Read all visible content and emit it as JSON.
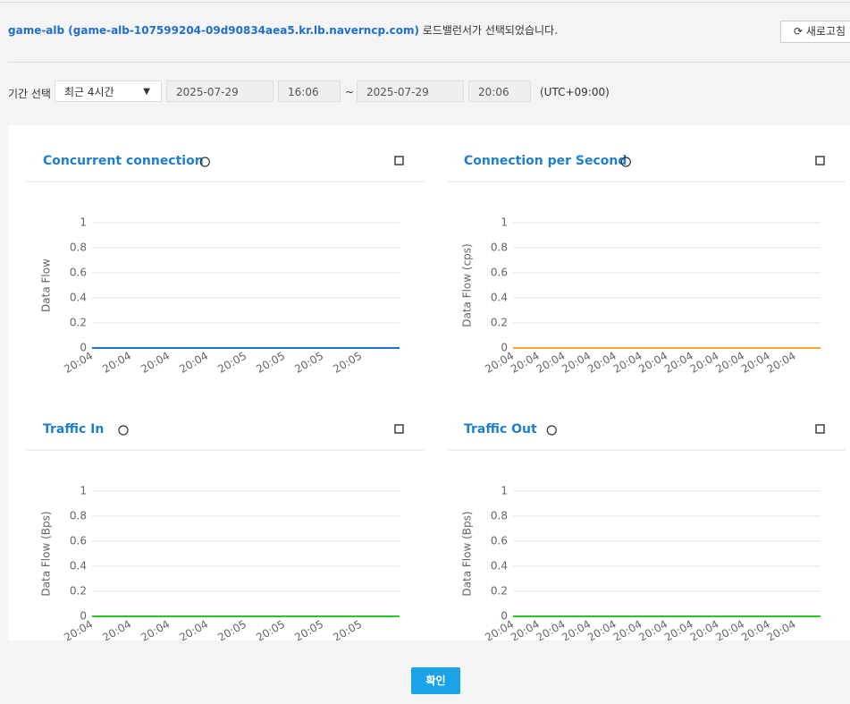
{
  "header": {
    "lb_name": "game-alb (game-alb-107599204-09d90834aea5.kr.lb.naverncp.com)",
    "message": "로드밸런서가 선택되었습니다.",
    "refresh": "새로고침"
  },
  "period": {
    "label": "기간 선택",
    "preset": "최근 4시간",
    "start_date": "2025-07-29",
    "start_time": "16:06",
    "separator": "~",
    "end_date": "2025-07-29",
    "end_time": "20:06",
    "timezone": "(UTC+09:00)"
  },
  "chart_data": [
    {
      "type": "line",
      "title": "Concurrent connection",
      "ylabel": "Data Flow",
      "categories": [
        "20:04",
        "20:04",
        "20:04",
        "20:04",
        "20:05",
        "20:05",
        "20:05",
        "20:05",
        null
      ],
      "values": [
        0,
        0,
        0,
        0,
        0,
        0,
        0,
        0,
        0
      ],
      "color": "#1f6fcc",
      "ylim": [
        0,
        1
      ],
      "yticks": [
        0,
        0.2,
        0.4,
        0.6,
        0.8,
        1
      ],
      "grid": true
    },
    {
      "type": "line",
      "title": "Connection per Second",
      "ylabel": "Data Flow (cps)",
      "categories": [
        "20:04",
        "20:04",
        "20:04",
        "20:04",
        "20:04",
        "20:04",
        "20:04",
        "20:04",
        "20:04",
        "20:04",
        "20:04",
        "20:04",
        null
      ],
      "values": [
        0,
        0,
        0,
        0,
        0,
        0,
        0,
        0,
        0,
        0,
        0,
        0,
        0
      ],
      "color": "#f5a623",
      "ylim": [
        0,
        1
      ],
      "yticks": [
        0,
        0.2,
        0.4,
        0.6,
        0.8,
        1
      ],
      "grid": true
    },
    {
      "type": "line",
      "title": "Traffic In",
      "ylabel": "Data Flow (Bps)",
      "categories": [
        "20:04",
        "20:04",
        "20:04",
        "20:04",
        "20:05",
        "20:05",
        "20:05",
        "20:05",
        null
      ],
      "values": [
        0,
        0,
        0,
        0,
        0,
        0,
        0,
        0,
        0
      ],
      "color": "#22cc22",
      "ylim": [
        0,
        1
      ],
      "yticks": [
        0,
        0.2,
        0.4,
        0.6,
        0.8,
        1
      ],
      "grid": true
    },
    {
      "type": "line",
      "title": "Traffic Out",
      "ylabel": "Data Flow (Bps)",
      "categories": [
        "20:04",
        "20:04",
        "20:04",
        "20:04",
        "20:04",
        "20:04",
        "20:04",
        "20:04",
        "20:04",
        "20:04",
        "20:04",
        "20:04",
        null
      ],
      "values": [
        0,
        0,
        0,
        0,
        0,
        0,
        0,
        0,
        0,
        0,
        0,
        0,
        0
      ],
      "color": "#22cc22",
      "ylim": [
        0,
        1
      ],
      "yticks": [
        0,
        0.2,
        0.4,
        0.6,
        0.8,
        1
      ],
      "grid": true
    }
  ],
  "confirm": "확인"
}
